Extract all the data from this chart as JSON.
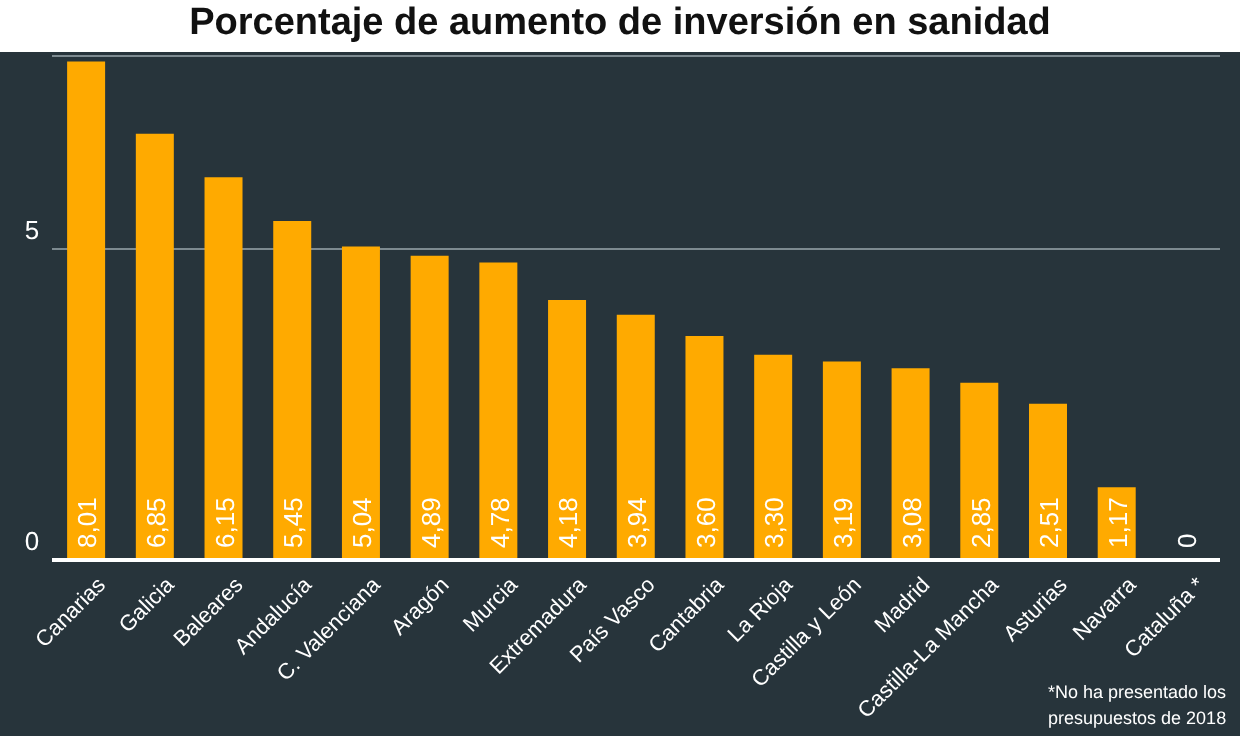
{
  "chart_data": {
    "type": "bar",
    "title": "Porcentaje de aumento de inversión en sanidad",
    "categories": [
      "Canarias",
      "Galicia",
      "Baleares",
      "Andalucía",
      "C. Valenciana",
      "Aragón",
      "Murcia",
      "Extremadura",
      "País Vasco",
      "Cantabria",
      "La Rioja",
      "Castilla y León",
      "Madrid",
      "Castilla-La Mancha",
      "Asturias",
      "Navarra",
      "Cataluña *"
    ],
    "values": [
      8.01,
      6.85,
      6.15,
      5.45,
      5.04,
      4.89,
      4.78,
      4.18,
      3.94,
      3.6,
      3.3,
      3.19,
      3.08,
      2.85,
      2.51,
      1.17,
      0
    ],
    "value_labels": [
      "8,01",
      "6,85",
      "6,15",
      "5,45",
      "5,04",
      "4,89",
      "4,78",
      "4,18",
      "3,94",
      "3,60",
      "3,30",
      "3,19",
      "3,08",
      "2,85",
      "2,51",
      "1,17",
      "0"
    ],
    "color": "#ffaa00",
    "ylim": [
      0,
      8.1
    ],
    "yticks": [
      0,
      5
    ],
    "grid": "y",
    "legend": false,
    "annotations": [
      "*No ha presentado los presupuestos de 2018"
    ]
  }
}
